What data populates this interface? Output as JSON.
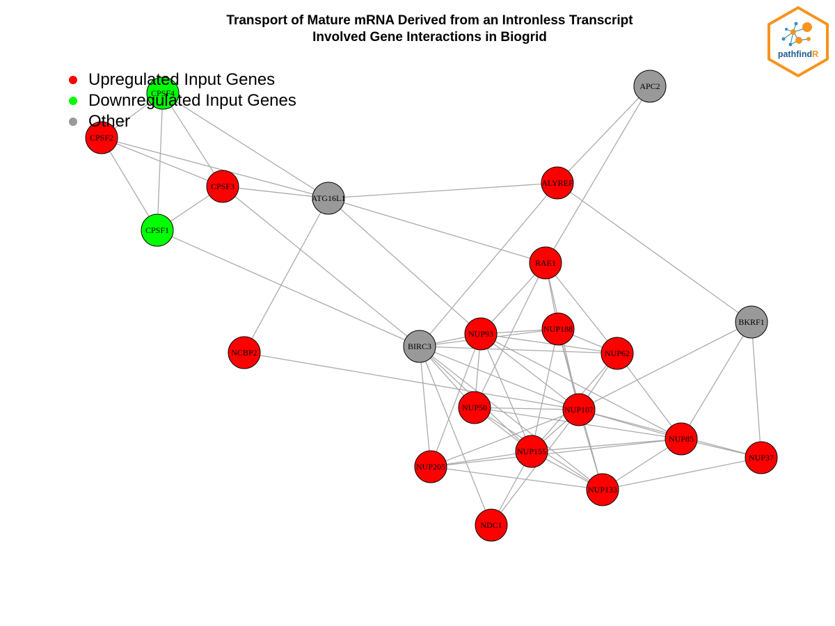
{
  "title": {
    "line1": "Transport of Mature mRNA Derived from an Intronless Transcript",
    "line2": "Involved Gene Interactions in Biogrid"
  },
  "legend": {
    "items": [
      {
        "label": "Upregulated Input Genes",
        "color": "#ff0000"
      },
      {
        "label": "Downregulated Input Genes",
        "color": "#00ff00"
      },
      {
        "label": "Other",
        "color": "#999999"
      }
    ]
  },
  "logo": {
    "text_main": "pathfind",
    "text_accent": "R",
    "border_color": "#f7931e",
    "text_color": "#1f5e8c"
  },
  "colors": {
    "up": "#ff0000",
    "down": "#00ff00",
    "other": "#999999",
    "edge": "#aaaaaa"
  },
  "network": {
    "nodes": [
      {
        "id": "CPSF4",
        "label": "CPSF4",
        "group": "down"
      },
      {
        "id": "CPSF2",
        "label": "CPSF2",
        "group": "up"
      },
      {
        "id": "CPSF3",
        "label": "CPSF3",
        "group": "up"
      },
      {
        "id": "CPSF1",
        "label": "CPSF1",
        "group": "down"
      },
      {
        "id": "ATG16L1",
        "label": "ATG16L1",
        "group": "other"
      },
      {
        "id": "APC2",
        "label": "APC2",
        "group": "other"
      },
      {
        "id": "ALYREF",
        "label": "ALYREF",
        "group": "up"
      },
      {
        "id": "RAE1",
        "label": "RAE1",
        "group": "up"
      },
      {
        "id": "BKRF1",
        "label": "BKRF1",
        "group": "other"
      },
      {
        "id": "NCBP2",
        "label": "NCBP2",
        "group": "up"
      },
      {
        "id": "BIRC3",
        "label": "BIRC3",
        "group": "other"
      },
      {
        "id": "NUP93",
        "label": "NUP93",
        "group": "up"
      },
      {
        "id": "NUP188",
        "label": "NUP188",
        "group": "up"
      },
      {
        "id": "NUP62",
        "label": "NUP62",
        "group": "up"
      },
      {
        "id": "NUP50",
        "label": "NUP50",
        "group": "up"
      },
      {
        "id": "NUP107",
        "label": "NUP107",
        "group": "up"
      },
      {
        "id": "NUP85",
        "label": "NUP85",
        "group": "up"
      },
      {
        "id": "NUP37",
        "label": "NUP37",
        "group": "up"
      },
      {
        "id": "NUP155",
        "label": "NUP155",
        "group": "up"
      },
      {
        "id": "NUP205",
        "label": "NUP205",
        "group": "up"
      },
      {
        "id": "NUP133",
        "label": "NUP133",
        "group": "up"
      },
      {
        "id": "NDC1",
        "label": "NDC1",
        "group": "up"
      }
    ],
    "edges": [
      [
        "CPSF4",
        "CPSF2"
      ],
      [
        "CPSF4",
        "CPSF3"
      ],
      [
        "CPSF4",
        "CPSF1"
      ],
      [
        "CPSF4",
        "ATG16L1"
      ],
      [
        "CPSF2",
        "CPSF3"
      ],
      [
        "CPSF2",
        "CPSF1"
      ],
      [
        "CPSF2",
        "ATG16L1"
      ],
      [
        "CPSF3",
        "CPSF1"
      ],
      [
        "CPSF3",
        "ATG16L1"
      ],
      [
        "CPSF3",
        "BIRC3"
      ],
      [
        "CPSF1",
        "BIRC3"
      ],
      [
        "ATG16L1",
        "ALYREF"
      ],
      [
        "ATG16L1",
        "RAE1"
      ],
      [
        "ATG16L1",
        "NCBP2"
      ],
      [
        "ATG16L1",
        "NUP93"
      ],
      [
        "APC2",
        "ALYREF"
      ],
      [
        "APC2",
        "RAE1"
      ],
      [
        "ALYREF",
        "BIRC3"
      ],
      [
        "ALYREF",
        "BKRF1"
      ],
      [
        "RAE1",
        "NUP93"
      ],
      [
        "RAE1",
        "NUP188"
      ],
      [
        "RAE1",
        "NUP62"
      ],
      [
        "RAE1",
        "NUP50"
      ],
      [
        "RAE1",
        "NUP107"
      ],
      [
        "BKRF1",
        "NUP107"
      ],
      [
        "BKRF1",
        "NUP85"
      ],
      [
        "BKRF1",
        "NUP37"
      ],
      [
        "NCBP2",
        "NUP107"
      ],
      [
        "BIRC3",
        "NUP93"
      ],
      [
        "BIRC3",
        "NUP188"
      ],
      [
        "BIRC3",
        "NUP62"
      ],
      [
        "BIRC3",
        "NUP50"
      ],
      [
        "BIRC3",
        "NUP107"
      ],
      [
        "BIRC3",
        "NUP155"
      ],
      [
        "BIRC3",
        "NUP205"
      ],
      [
        "BIRC3",
        "NUP133"
      ],
      [
        "BIRC3",
        "NDC1"
      ],
      [
        "NUP93",
        "NUP188"
      ],
      [
        "NUP93",
        "NUP62"
      ],
      [
        "NUP93",
        "NUP205"
      ],
      [
        "NUP93",
        "NUP107"
      ],
      [
        "NUP93",
        "NUP155"
      ],
      [
        "NUP93",
        "NUP50"
      ],
      [
        "NUP93",
        "NUP85"
      ],
      [
        "NUP188",
        "NUP62"
      ],
      [
        "NUP188",
        "NUP107"
      ],
      [
        "NUP188",
        "NUP155"
      ],
      [
        "NUP188",
        "NUP133"
      ],
      [
        "NUP62",
        "NUP107"
      ],
      [
        "NUP62",
        "NUP85"
      ],
      [
        "NUP62",
        "NUP155"
      ],
      [
        "NUP50",
        "NUP107"
      ],
      [
        "NUP50",
        "NUP155"
      ],
      [
        "NUP50",
        "NUP85"
      ],
      [
        "NUP50",
        "NUP133"
      ],
      [
        "NUP107",
        "NUP85"
      ],
      [
        "NUP107",
        "NUP37"
      ],
      [
        "NUP107",
        "NUP155"
      ],
      [
        "NUP107",
        "NUP133"
      ],
      [
        "NUP107",
        "NUP205"
      ],
      [
        "NUP107",
        "NDC1"
      ],
      [
        "NUP85",
        "NUP37"
      ],
      [
        "NUP85",
        "NUP155"
      ],
      [
        "NUP85",
        "NUP133"
      ],
      [
        "NUP37",
        "NUP133"
      ],
      [
        "NUP155",
        "NUP205"
      ],
      [
        "NUP155",
        "NUP133"
      ],
      [
        "NUP155",
        "NDC1"
      ],
      [
        "NUP205",
        "NUP85"
      ],
      [
        "NUP205",
        "NUP133"
      ]
    ]
  }
}
